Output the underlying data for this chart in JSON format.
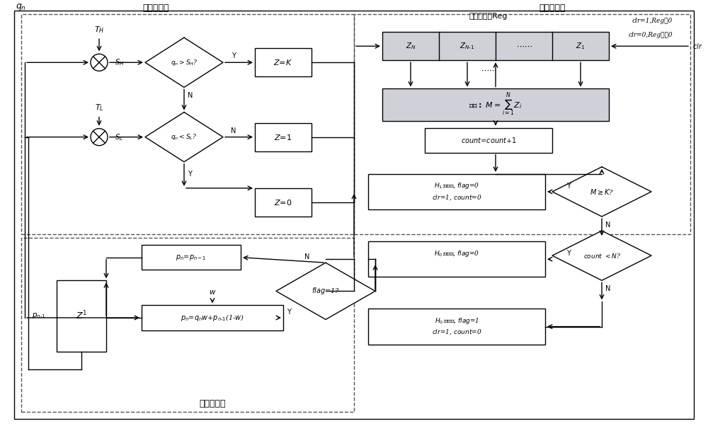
{
  "title": "",
  "bg_color": "#ffffff",
  "line_color": "#000000",
  "box_fill": "#ffffff",
  "dashed_box_fill": "#e8e8f0",
  "fig_width": 10.0,
  "fig_height": 6.02,
  "label_first_stage": "第一级检测",
  "label_second_stage": "第二级检测",
  "label_clutter_update": "杂波图更新",
  "label_shift_reg": "移位寄存器Reg",
  "label_clr1": "clr=1,Reg清0",
  "label_clr0": "clr=0,Reg不清0"
}
